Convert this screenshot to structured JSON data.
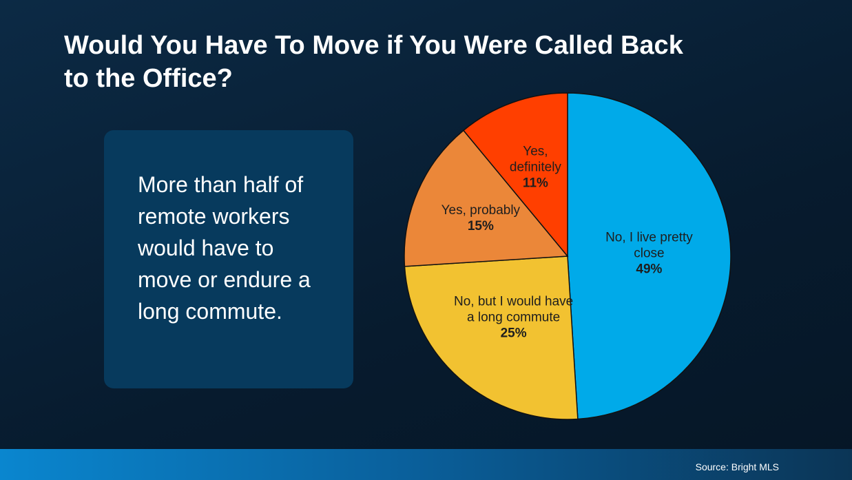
{
  "chart_data": {
    "type": "pie",
    "title": "Would You Have To Move if You Were Called Back to the Office?",
    "categories": [
      "No, I live pretty close",
      "No, but I would have a long commute",
      "Yes, probably",
      "Yes, definitely"
    ],
    "values": [
      49,
      25,
      15,
      11
    ],
    "value_labels": [
      "49%",
      "25%",
      "15%",
      "11%"
    ],
    "colors": [
      "#00aae9",
      "#f2c231",
      "#eb8739",
      "#ff3f00"
    ]
  },
  "callout": "More than half of remote workers would have to move or endure a long commute.",
  "source": "Source: Bright MLS"
}
